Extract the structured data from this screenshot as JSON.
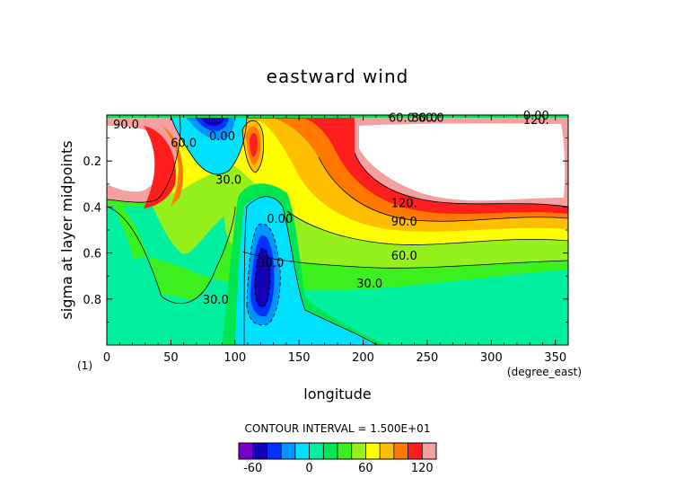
{
  "chart_data": {
    "type": "contour",
    "title": "eastward wind",
    "xlabel": "longitude",
    "x_units": "(degree_east)",
    "ylabel": "sigma at layer midpoints",
    "page_label": "(1)",
    "xlim": [
      0,
      360
    ],
    "ylim": [
      1.0,
      0.0
    ],
    "y_inverted": true,
    "x_ticks": [
      "0",
      "50",
      "100",
      "150",
      "200",
      "250",
      "300",
      "350"
    ],
    "y_ticks": [
      "0.2",
      "0.4",
      "0.6",
      "0.8"
    ],
    "x_tick_values": [
      0,
      50,
      100,
      150,
      200,
      250,
      300,
      350
    ],
    "y_tick_values": [
      0.2,
      0.4,
      0.6,
      0.8
    ],
    "contour_interval_text": "CONTOUR INTERVAL = 1.500E+01",
    "colorbar": {
      "labels": [
        "-60",
        "0",
        "60",
        "120"
      ],
      "label_values": [
        -60,
        0,
        60,
        120
      ],
      "min": -75,
      "max": 135,
      "colors": [
        "#7a00c8",
        "#1400b4",
        "#0032ff",
        "#0096ff",
        "#00e1ff",
        "#00f0a0",
        "#00e650",
        "#3cf01e",
        "#96f01e",
        "#ffff00",
        "#ffbe00",
        "#ff7800",
        "#ff1e1e",
        "#f5a0a0"
      ]
    },
    "contour_labels": [
      {
        "text": "60.0",
        "x": 230,
        "y": 0.01
      },
      {
        "text": "30.0",
        "x": 248,
        "y": 0.01
      },
      {
        "text": "60.0",
        "x": 253,
        "y": 0.01
      },
      {
        "text": "0.00",
        "x": 335,
        "y": 0.0
      },
      {
        "text": "120.",
        "x": 335,
        "y": 0.02
      },
      {
        "text": "90.0",
        "x": 15,
        "y": 0.04
      },
      {
        "text": "60.0",
        "x": 60,
        "y": 0.12
      },
      {
        "text": "0.00",
        "x": 90,
        "y": 0.09
      },
      {
        "text": "30.0",
        "x": 95,
        "y": 0.28
      },
      {
        "text": "120.",
        "x": 232,
        "y": 0.38
      },
      {
        "text": "90.0",
        "x": 232,
        "y": 0.46
      },
      {
        "text": "60.0",
        "x": 232,
        "y": 0.61
      },
      {
        "text": "30.0",
        "x": 205,
        "y": 0.73
      },
      {
        "text": "30.0",
        "x": 85,
        "y": 0.8
      },
      {
        "text": "0.00",
        "x": 135,
        "y": 0.45
      },
      {
        "text": "30.0",
        "x": 128,
        "y": 0.64
      }
    ],
    "grid": false
  }
}
